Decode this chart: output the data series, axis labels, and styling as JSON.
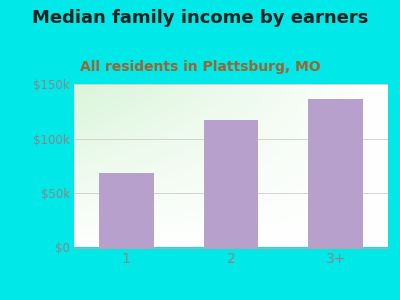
{
  "title": "Median family income by earners",
  "subtitle": "All residents in Plattsburg, MO",
  "categories": [
    "1",
    "2",
    "3+"
  ],
  "values": [
    68000,
    117000,
    136000
  ],
  "bar_color": "#b8a0cc",
  "bg_color": "#00e8e8",
  "plot_bg_topleft": "#d4edd4",
  "plot_bg_bottomright": "#f8fff8",
  "title_color": "#222222",
  "subtitle_color": "#996633",
  "tick_color": "#888888",
  "grid_color": "#cccccc",
  "ylim": [
    0,
    150000
  ],
  "yticks": [
    0,
    50000,
    100000,
    150000
  ],
  "ytick_labels": [
    "$0",
    "$50k",
    "$100k",
    "$150k"
  ],
  "title_fontsize": 13,
  "subtitle_fontsize": 10,
  "bar_width": 0.52
}
